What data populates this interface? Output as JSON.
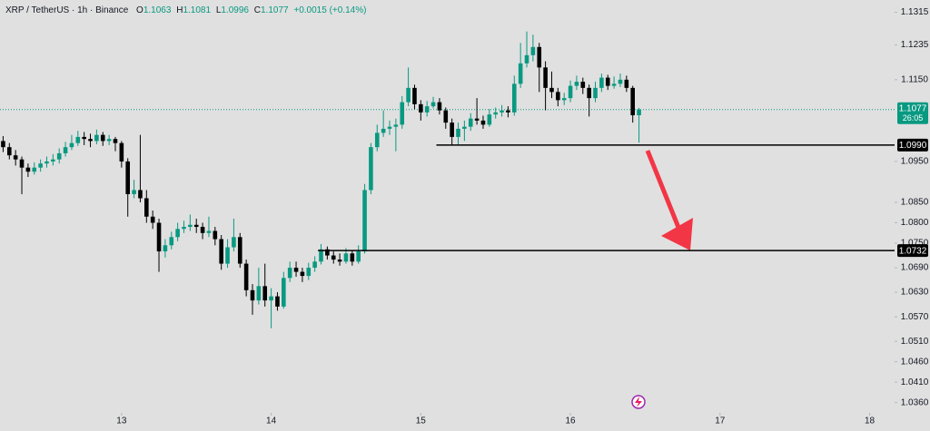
{
  "chart_data": {
    "type": "candlestick",
    "title": "XRP / TetherUS · 1h · Binance",
    "ohlc_labels": [
      "O",
      "H",
      "L",
      "C"
    ],
    "change": "+0.0015 (+0.14%)",
    "up_color": "#089981",
    "down_color": "#000000",
    "grid": false,
    "series": {
      "open": [
        1.1,
        1.0985,
        1.0965,
        1.0955,
        1.0935,
        1.0925,
        1.0935,
        1.0945,
        1.095,
        1.0955,
        1.097,
        1.0985,
        1.0995,
        1.101,
        1.1005,
        1.1,
        1.1015,
        1.1,
        1.1005,
        1.0995,
        1.095,
        1.087,
        1.088,
        1.086,
        1.0815,
        1.08,
        1.073,
        1.0745,
        1.0765,
        1.0785,
        1.079,
        1.0795,
        1.079,
        1.0775,
        1.078,
        1.076,
        1.07,
        1.074,
        1.0765,
        1.07,
        1.0635,
        1.061,
        1.0645,
        1.061,
        1.062,
        1.0595,
        1.0665,
        1.069,
        1.068,
        1.067,
        1.069,
        1.0705,
        1.0735,
        1.072,
        1.071,
        1.0705,
        1.0725,
        1.0705,
        1.073,
        1.088,
        1.0985,
        1.102,
        1.103,
        1.1035,
        1.104,
        1.1095,
        1.113,
        1.109,
        1.107,
        1.1085,
        1.1095,
        1.1075,
        1.1045,
        1.101,
        1.103,
        1.1035,
        1.1055,
        1.105,
        1.104,
        1.1065,
        1.107,
        1.1075,
        1.107,
        1.114,
        1.119,
        1.121,
        1.123,
        1.118,
        1.113,
        1.112,
        1.11,
        1.1105,
        1.1135,
        1.1145,
        1.113,
        1.1105,
        1.113,
        1.1155,
        1.1135,
        1.114,
        1.115,
        1.113,
        1.1063
      ],
      "high": [
        1.1012,
        1.0995,
        1.0978,
        1.0962,
        1.0945,
        1.0948,
        1.0955,
        1.0962,
        1.0968,
        1.0982,
        1.0998,
        1.1015,
        1.1025,
        1.1022,
        1.1018,
        1.1028,
        1.1022,
        1.1015,
        1.101,
        1.1,
        1.0958,
        1.0905,
        1.1015,
        1.088,
        1.083,
        1.081,
        1.076,
        1.0778,
        1.08,
        1.0805,
        1.082,
        1.081,
        1.08,
        1.0815,
        1.079,
        1.077,
        1.076,
        1.081,
        1.0775,
        1.071,
        1.065,
        1.069,
        1.07,
        1.064,
        1.063,
        1.068,
        1.0705,
        1.0705,
        1.069,
        1.0702,
        1.0718,
        1.0748,
        1.0742,
        1.073,
        1.0725,
        1.0738,
        1.0732,
        1.0745,
        1.0895,
        1.0995,
        1.104,
        1.1075,
        1.105,
        1.1055,
        1.111,
        1.118,
        1.1138,
        1.11,
        1.1098,
        1.1108,
        1.1105,
        1.1082,
        1.1055,
        1.1045,
        1.105,
        1.1068,
        1.1105,
        1.1062,
        1.1078,
        1.1082,
        1.1088,
        1.1085,
        1.116,
        1.124,
        1.1268,
        1.126,
        1.124,
        1.1195,
        1.117,
        1.113,
        1.1118,
        1.1148,
        1.116,
        1.1155,
        1.1138,
        1.1145,
        1.1165,
        1.1162,
        1.1158,
        1.1165,
        1.116,
        1.1135,
        1.1081
      ],
      "low": [
        1.0973,
        1.0955,
        1.094,
        1.087,
        1.0912,
        1.0918,
        1.0925,
        1.0935,
        1.094,
        1.0945,
        1.0962,
        1.0978,
        1.0988,
        1.099,
        1.0985,
        1.0992,
        1.0988,
        1.099,
        1.0975,
        1.0935,
        1.0815,
        1.086,
        1.085,
        1.08,
        1.0785,
        1.068,
        1.0715,
        1.0735,
        1.0755,
        1.0775,
        1.078,
        1.0775,
        1.076,
        1.0765,
        1.0745,
        1.0685,
        1.069,
        1.073,
        1.069,
        1.062,
        1.0575,
        1.06,
        1.0595,
        1.0542,
        1.0585,
        1.059,
        1.0655,
        1.0668,
        1.0655,
        1.066,
        1.068,
        1.0698,
        1.071,
        1.07,
        1.0695,
        1.07,
        1.0695,
        1.07,
        1.0725,
        1.087,
        1.0975,
        1.101,
        1.1015,
        1.0975,
        1.103,
        1.1085,
        1.1078,
        1.105,
        1.106,
        1.108,
        1.1065,
        1.103,
        1.099,
        1.099,
        1.1,
        1.1025,
        1.104,
        1.103,
        1.1035,
        1.1055,
        1.106,
        1.1058,
        1.1062,
        1.113,
        1.118,
        1.1195,
        1.112,
        1.1075,
        1.1105,
        1.1085,
        1.1088,
        1.1095,
        1.1125,
        1.1115,
        1.106,
        1.1095,
        1.112,
        1.1125,
        1.1128,
        1.1132,
        1.112,
        1.1045,
        1.0996
      ],
      "close": [
        1.0985,
        1.0965,
        1.0955,
        1.0935,
        1.0925,
        1.0935,
        1.0945,
        1.095,
        1.0955,
        1.097,
        1.0985,
        1.0995,
        1.101,
        1.1005,
        1.1,
        1.1015,
        1.1,
        1.1005,
        1.0995,
        1.095,
        1.087,
        1.088,
        1.086,
        1.0815,
        1.08,
        1.073,
        1.0745,
        1.0765,
        1.0785,
        1.079,
        1.0795,
        1.079,
        1.0775,
        1.078,
        1.076,
        1.07,
        1.074,
        1.0765,
        1.07,
        1.0635,
        1.061,
        1.0645,
        1.061,
        1.062,
        1.0595,
        1.0665,
        1.069,
        1.068,
        1.067,
        1.069,
        1.0705,
        1.0735,
        1.072,
        1.071,
        1.0705,
        1.0725,
        1.0705,
        1.073,
        1.088,
        1.0985,
        1.102,
        1.103,
        1.1035,
        1.104,
        1.1095,
        1.113,
        1.109,
        1.107,
        1.1085,
        1.1095,
        1.1075,
        1.1045,
        1.101,
        1.103,
        1.1035,
        1.1055,
        1.105,
        1.104,
        1.1065,
        1.107,
        1.1075,
        1.107,
        1.114,
        1.119,
        1.121,
        1.123,
        1.118,
        1.113,
        1.112,
        1.11,
        1.1105,
        1.1135,
        1.1145,
        1.113,
        1.1105,
        1.113,
        1.1155,
        1.1135,
        1.114,
        1.115,
        1.113,
        1.1063,
        1.1077
      ]
    },
    "countdown": "26:05",
    "levels": [
      {
        "value": 1.099,
        "label": "1.0990",
        "start": 69.5
      },
      {
        "value": 1.0732,
        "label": "1.0732",
        "start": 50.5
      }
    ],
    "ylim": [
      1.0335,
      1.1345
    ],
    "yticks": [
      1.1315,
      1.1235,
      {
        "value": 1.115,
        "label": "1.1150"
      },
      {
        "value": 1.095,
        "label": "1.0950"
      },
      {
        "value": 1.085,
        "label": "1.0850"
      },
      {
        "value": 1.08,
        "label": "1.0800"
      },
      {
        "value": 1.075,
        "label": "1.0750"
      },
      {
        "value": 1.069,
        "label": "1.0690"
      },
      {
        "value": 1.063,
        "label": "1.0630"
      },
      {
        "value": 1.057,
        "label": "1.0570"
      },
      {
        "value": 1.051,
        "label": "1.0510"
      },
      {
        "value": 1.046,
        "label": "1.0460"
      },
      {
        "value": 1.041,
        "label": "1.0410"
      },
      {
        "value": 1.036,
        "label": "1.0360"
      }
    ],
    "xlim": [
      -0.5,
      143
    ],
    "xticks": [
      {
        "value": 19,
        "label": "13"
      },
      {
        "value": 43,
        "label": "14"
      },
      {
        "value": 67,
        "label": "15"
      },
      {
        "value": 91,
        "label": "16"
      },
      {
        "value": 115,
        "label": "17"
      },
      {
        "value": 139,
        "label": "18"
      }
    ]
  }
}
